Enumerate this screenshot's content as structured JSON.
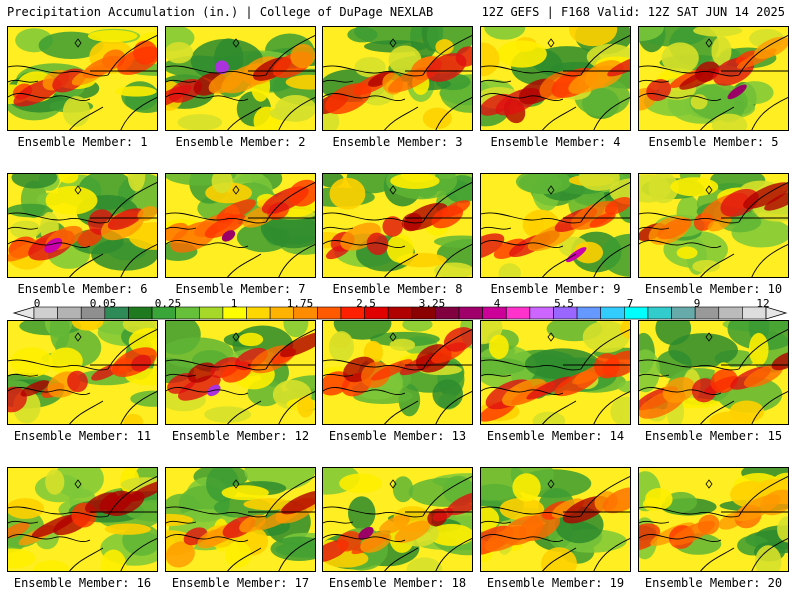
{
  "header": {
    "left": "Precipitation Accumulation (in.) | College of DuPage NEXLAB",
    "right": "12Z GEFS | F168 Valid: 12Z SAT JUN 14 2025"
  },
  "colorbar": {
    "labels": [
      "0",
      "0.05",
      "0.25",
      "1",
      "1.75",
      "2.5",
      "3.25",
      "4",
      "5.5",
      "7",
      "9",
      "12"
    ],
    "colors": [
      "#cfcfcf",
      "#b3b3b3",
      "#8f8f8f",
      "#2e8b57",
      "#1f7a1f",
      "#3aa63a",
      "#66c03a",
      "#a6d829",
      "#ffff00",
      "#ffd700",
      "#ffb300",
      "#ff8c00",
      "#ff5a00",
      "#ff2000",
      "#e00000",
      "#b00000",
      "#8b0000",
      "#800040",
      "#a0006a",
      "#cc0099",
      "#ff33cc",
      "#cc66ff",
      "#9966ff",
      "#6699ff",
      "#33ccff",
      "#00ffff",
      "#33cccc",
      "#66aaaa",
      "#999999",
      "#bbbbbb",
      "#dddddd"
    ]
  },
  "members": [
    {
      "label": "Ensemble Member: 1"
    },
    {
      "label": "Ensemble Member: 2"
    },
    {
      "label": "Ensemble Member: 3"
    },
    {
      "label": "Ensemble Member: 4"
    },
    {
      "label": "Ensemble Member: 5"
    },
    {
      "label": "Ensemble Member: 6"
    },
    {
      "label": "Ensemble Member: 7"
    },
    {
      "label": "Ensemble Member: 8"
    },
    {
      "label": "Ensemble Member: 9"
    },
    {
      "label": "Ensemble Member: 10"
    },
    {
      "label": "Ensemble Member: 11"
    },
    {
      "label": "Ensemble Member: 12"
    },
    {
      "label": "Ensemble Member: 13"
    },
    {
      "label": "Ensemble Member: 14"
    },
    {
      "label": "Ensemble Member: 15"
    },
    {
      "label": "Ensemble Member: 16"
    },
    {
      "label": "Ensemble Member: 17"
    },
    {
      "label": "Ensemble Member: 18"
    },
    {
      "label": "Ensemble Member: 19"
    },
    {
      "label": "Ensemble Member: 20"
    }
  ]
}
